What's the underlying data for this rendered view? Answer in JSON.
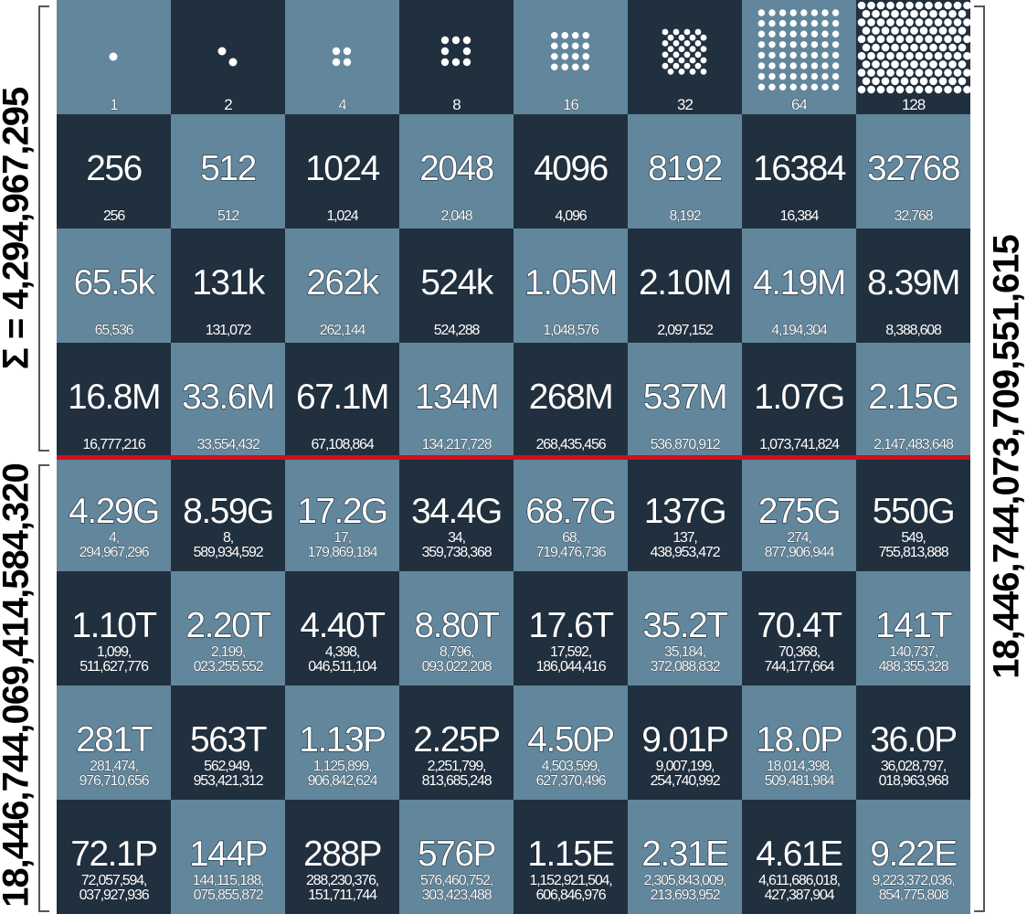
{
  "title": "",
  "side_labels": {
    "top_left": "Σ = 4,294,967,295",
    "bottom_left": "18,446,744,069,414,584,320",
    "right": "18,446,744,073,709,551,615"
  },
  "colors": {
    "light_square": "#62879c",
    "dark_square": "#21303f",
    "divider": "#d0101a",
    "text": "#ffffff"
  },
  "board": {
    "row1": [
      {
        "label": "1",
        "dots": 1
      },
      {
        "label": "2",
        "dots": 2
      },
      {
        "label": "4",
        "dots": 4
      },
      {
        "label": "8",
        "dots": 8
      },
      {
        "label": "16",
        "dots": 16
      },
      {
        "label": "32",
        "dots": 32
      },
      {
        "label": "64",
        "dots": 64
      },
      {
        "label": "128",
        "dots": 128
      }
    ],
    "rows": [
      [
        {
          "abbr": "256",
          "full": "256"
        },
        {
          "abbr": "512",
          "full": "512"
        },
        {
          "abbr": "1024",
          "full": "1,024"
        },
        {
          "abbr": "2048",
          "full": "2,048"
        },
        {
          "abbr": "4096",
          "full": "4,096"
        },
        {
          "abbr": "8192",
          "full": "8,192"
        },
        {
          "abbr": "16384",
          "full": "16,384"
        },
        {
          "abbr": "32768",
          "full": "32,768"
        }
      ],
      [
        {
          "abbr": "65.5k",
          "full": "65,536"
        },
        {
          "abbr": "131k",
          "full": "131,072"
        },
        {
          "abbr": "262k",
          "full": "262,144"
        },
        {
          "abbr": "524k",
          "full": "524,288"
        },
        {
          "abbr": "1.05M",
          "full": "1,048,576"
        },
        {
          "abbr": "2.10M",
          "full": "2,097,152"
        },
        {
          "abbr": "4.19M",
          "full": "4,194,304"
        },
        {
          "abbr": "8.39M",
          "full": "8,388,608"
        }
      ],
      [
        {
          "abbr": "16.8M",
          "full": "16,777,216"
        },
        {
          "abbr": "33.6M",
          "full": "33,554,432"
        },
        {
          "abbr": "67.1M",
          "full": "67,108,864"
        },
        {
          "abbr": "134M",
          "full": "134,217,728"
        },
        {
          "abbr": "268M",
          "full": "268,435,456"
        },
        {
          "abbr": "537M",
          "full": "536,870,912"
        },
        {
          "abbr": "1.07G",
          "full": "1,073,741,824"
        },
        {
          "abbr": "2.15G",
          "full": "2,147,483,648"
        }
      ],
      [
        {
          "abbr": "4.29G",
          "full": "4,\n294,967,296"
        },
        {
          "abbr": "8.59G",
          "full": "8,\n589,934,592"
        },
        {
          "abbr": "17.2G",
          "full": "17,\n179,869,184"
        },
        {
          "abbr": "34.4G",
          "full": "34,\n359,738,368"
        },
        {
          "abbr": "68.7G",
          "full": "68,\n719,476,736"
        },
        {
          "abbr": "137G",
          "full": "137,\n438,953,472"
        },
        {
          "abbr": "275G",
          "full": "274,\n877,906,944"
        },
        {
          "abbr": "550G",
          "full": "549,\n755,813,888"
        }
      ],
      [
        {
          "abbr": "1.10T",
          "full": "1,099,\n511,627,776"
        },
        {
          "abbr": "2.20T",
          "full": "2,199,\n023,255,552"
        },
        {
          "abbr": "4.40T",
          "full": "4,398,\n046,511,104"
        },
        {
          "abbr": "8.80T",
          "full": "8,796,\n093,022,208"
        },
        {
          "abbr": "17.6T",
          "full": "17,592,\n186,044,416"
        },
        {
          "abbr": "35.2T",
          "full": "35,184,\n372,088,832"
        },
        {
          "abbr": "70.4T",
          "full": "70,368,\n744,177,664"
        },
        {
          "abbr": "141T",
          "full": "140,737,\n488,355,328"
        }
      ],
      [
        {
          "abbr": "281T",
          "full": "281,474,\n976,710,656"
        },
        {
          "abbr": "563T",
          "full": "562,949,\n953,421,312"
        },
        {
          "abbr": "1.13P",
          "full": "1,125,899,\n906,842,624"
        },
        {
          "abbr": "2.25P",
          "full": "2,251,799,\n813,685,248"
        },
        {
          "abbr": "4.50P",
          "full": "4,503,599,\n627,370,496"
        },
        {
          "abbr": "9.01P",
          "full": "9,007,199,\n254,740,992"
        },
        {
          "abbr": "18.0P",
          "full": "18,014,398,\n509,481,984"
        },
        {
          "abbr": "36.0P",
          "full": "36,028,797,\n018,963,968"
        }
      ],
      [
        {
          "abbr": "72.1P",
          "full": "72,057,594,\n037,927,936"
        },
        {
          "abbr": "144P",
          "full": "144,115,188,\n075,855,872"
        },
        {
          "abbr": "288P",
          "full": "288,230,376,\n151,711,744"
        },
        {
          "abbr": "576P",
          "full": "576,460,752,\n303,423,488"
        },
        {
          "abbr": "1.15E",
          "full": "1,152,921,504,\n606,846,976"
        },
        {
          "abbr": "2.31E",
          "full": "2,305,843,009,\n213,693,952"
        },
        {
          "abbr": "4.61E",
          "full": "4,611,686,018,\n427,387,904"
        },
        {
          "abbr": "9.22E",
          "full": "9,223,372,036,\n854,775,808"
        }
      ]
    ]
  }
}
